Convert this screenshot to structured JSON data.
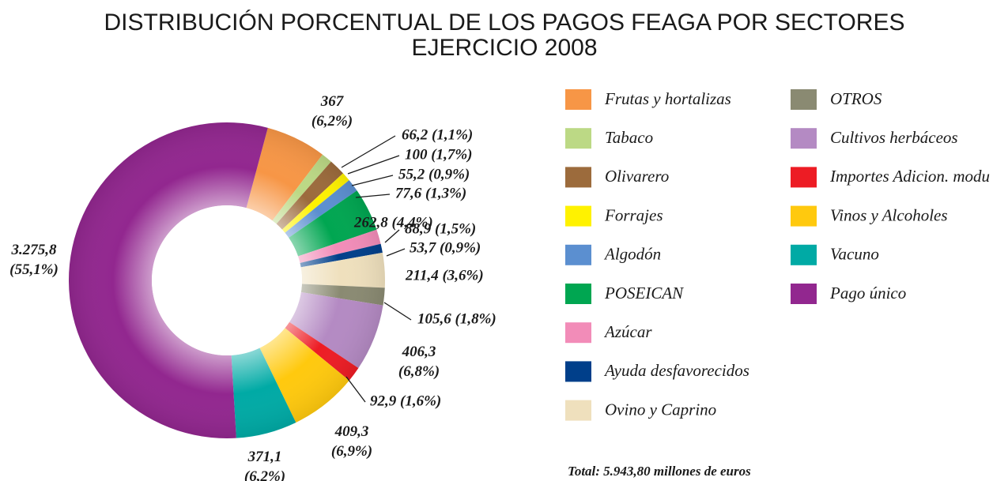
{
  "chart_data": {
    "type": "donut",
    "title": "DISTRIBUCIÓN PORCENTUAL DE LOS PAGOS FEAGA POR SECTORES",
    "subtitle": "EJERCICIO 2008",
    "note": "Total: 5.943,80 millones de euros",
    "categories": [
      "Frutas y hortalizas",
      "Tabaco",
      "Olivarero",
      "Forrajes",
      "Algodón",
      "POSEICAN",
      "Azúcar",
      "Ayuda desfavorecidos",
      "Ovino y Caprino",
      "OTROS",
      "Cultivos herbáceos",
      "Importes Adicion. modu",
      "Vinos y Alcoholes",
      "Vacuno",
      "Pago único"
    ],
    "values": [
      367,
      66.2,
      100,
      55.2,
      77.6,
      262.8,
      88.9,
      53.7,
      211.4,
      105.6,
      406.3,
      92.9,
      409.3,
      371.1,
      3275.8
    ],
    "value_labels": [
      "367 (6,2%)",
      "66,2 (1,1%)",
      "100 (1,7%)",
      "55,2 (0,9%)",
      "77,6 (1,3%)",
      "262,8 (4,4%)",
      "88,9 (1,5%)",
      "53,7 (0,9%)",
      "211,4 (3,6%)",
      "105,6 (1,8%)",
      "406,3 (6,8%)",
      "92,9 (1,6%)",
      "409,3 (6,9%)",
      "371,1 (6,2%)",
      "3.275,8 (55,1%)"
    ],
    "colors": [
      "#f79646",
      "#bcd985",
      "#9c6b3c",
      "#fff200",
      "#5b8fd0",
      "#00a651",
      "#f28cb8",
      "#003f8a",
      "#efe0bd",
      "#8a8a72",
      "#b48ac3",
      "#ed1c24",
      "#ffc90e",
      "#00aaa5",
      "#92278f"
    ],
    "legend": "right"
  }
}
